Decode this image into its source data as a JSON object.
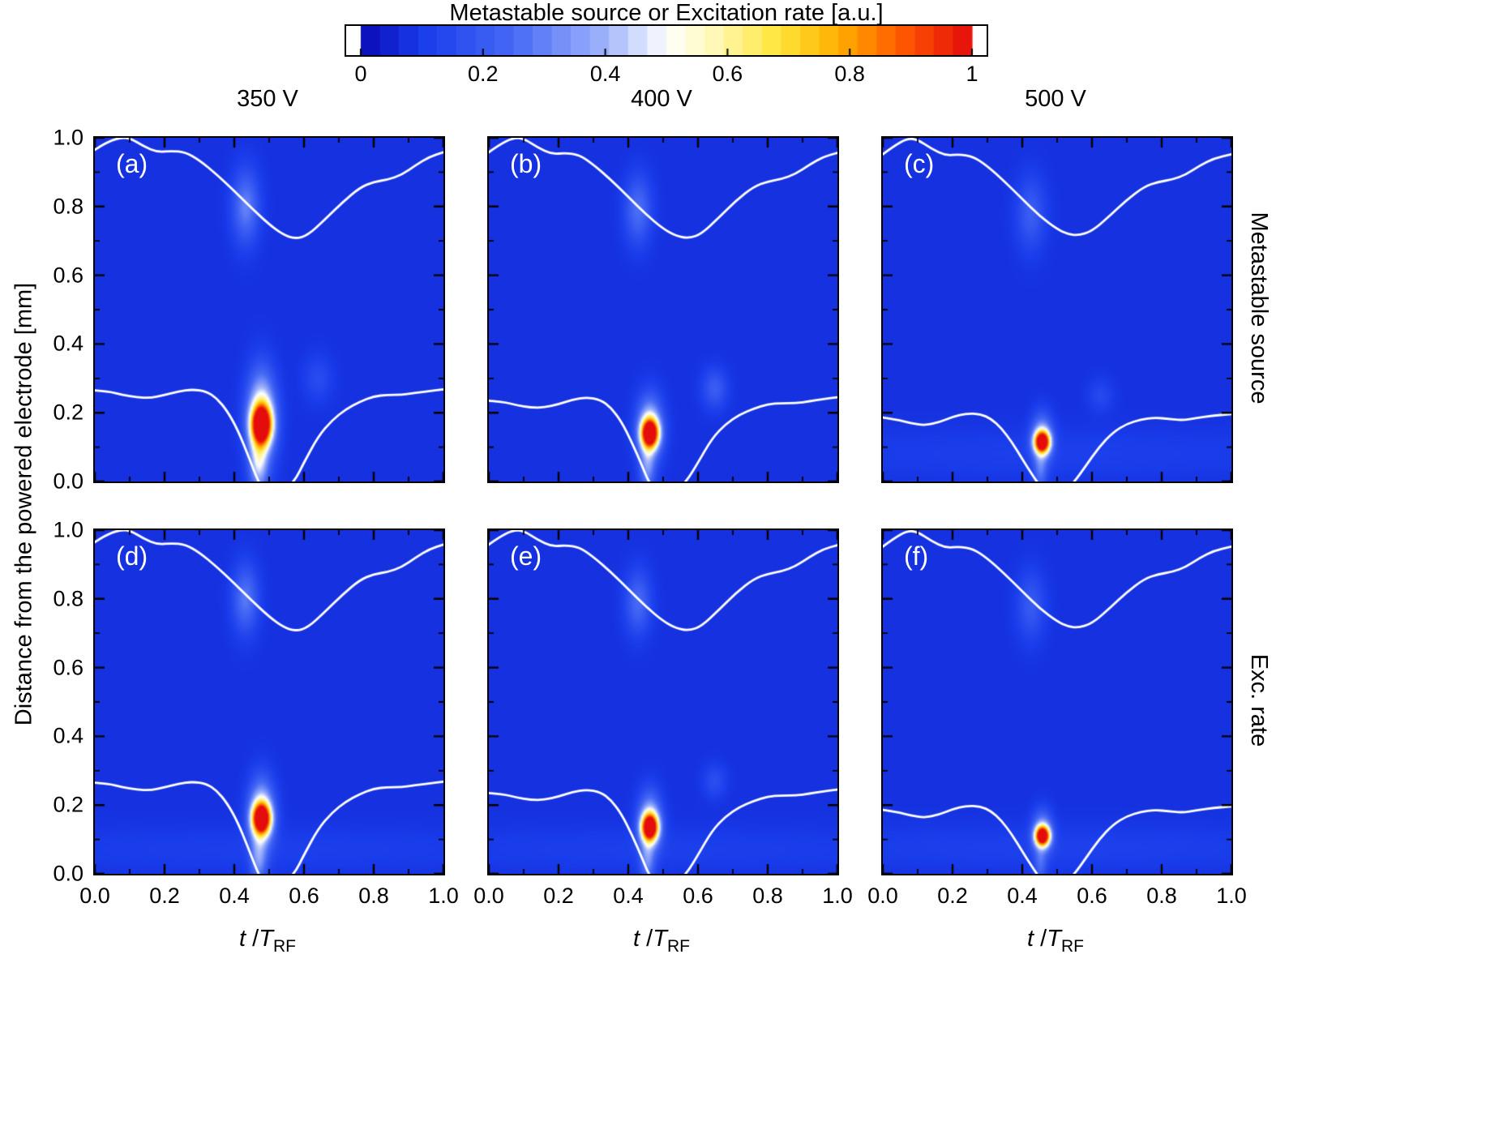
{
  "colorbar": {
    "title": "Metastable source or Excitation rate [a.u.]",
    "tick_labels": [
      "0",
      "0.2",
      "0.4",
      "0.6",
      "0.8",
      "1"
    ],
    "tick_values": [
      0,
      0.2,
      0.4,
      0.6,
      0.8,
      1
    ]
  },
  "columns": [
    {
      "label": "350 V"
    },
    {
      "label": "400 V"
    },
    {
      "label": "500 V"
    }
  ],
  "rows": [
    {
      "label": "Metastable source"
    },
    {
      "label": "Exc. rate"
    }
  ],
  "axes": {
    "ylabel": "Distance from the powered electrode [mm]",
    "xlabel_t": "t",
    "xlabel_slash": " /",
    "xlabel_T": "T",
    "xlabel_sub": "RF",
    "x_tick_labels": [
      "0.0",
      "0.2",
      "0.4",
      "0.6",
      "0.8",
      "1.0"
    ],
    "x_tick_values": [
      0,
      0.2,
      0.4,
      0.6,
      0.8,
      1
    ],
    "y_tick_labels": [
      "0.0",
      "0.2",
      "0.4",
      "0.6",
      "0.8",
      "1.0"
    ],
    "y_tick_values": [
      0,
      0.2,
      0.4,
      0.6,
      0.8,
      1
    ]
  },
  "chart_data": {
    "type": "heatmap",
    "x_range": [
      0,
      1
    ],
    "y_range": [
      0,
      1
    ],
    "x_axis": "t/T_RF (normalized time in RF period)",
    "y_axis": "Distance from the powered electrode [mm]",
    "value_label": "Metastable source or Excitation rate [a.u.]",
    "value_range": [
      0,
      1
    ],
    "base_value": 0.08,
    "colormap_stops": [
      [
        0.0,
        10,
        10,
        180
      ],
      [
        0.1,
        25,
        60,
        235
      ],
      [
        0.25,
        70,
        105,
        245
      ],
      [
        0.4,
        160,
        180,
        250
      ],
      [
        0.5,
        255,
        255,
        255
      ],
      [
        0.58,
        255,
        248,
        180
      ],
      [
        0.68,
        255,
        230,
        60
      ],
      [
        0.78,
        255,
        176,
        0
      ],
      [
        0.88,
        255,
        92,
        0
      ],
      [
        1.0,
        228,
        12,
        12
      ]
    ],
    "sheaths": {
      "350": {
        "top": [
          [
            0,
            0.965
          ],
          [
            0.03,
            0.985
          ],
          [
            0.07,
            1.0
          ],
          [
            0.1,
            1.0
          ],
          [
            0.14,
            0.975
          ],
          [
            0.18,
            0.958
          ],
          [
            0.22,
            0.962
          ],
          [
            0.26,
            0.958
          ],
          [
            0.3,
            0.935
          ],
          [
            0.35,
            0.893
          ],
          [
            0.4,
            0.845
          ],
          [
            0.45,
            0.795
          ],
          [
            0.5,
            0.748
          ],
          [
            0.54,
            0.718
          ],
          [
            0.575,
            0.706
          ],
          [
            0.61,
            0.716
          ],
          [
            0.66,
            0.762
          ],
          [
            0.71,
            0.812
          ],
          [
            0.76,
            0.855
          ],
          [
            0.8,
            0.872
          ],
          [
            0.84,
            0.878
          ],
          [
            0.88,
            0.892
          ],
          [
            0.92,
            0.92
          ],
          [
            0.96,
            0.945
          ],
          [
            1.0,
            0.958
          ]
        ],
        "bottom": [
          [
            0,
            0.265
          ],
          [
            0.04,
            0.262
          ],
          [
            0.08,
            0.252
          ],
          [
            0.12,
            0.245
          ],
          [
            0.16,
            0.243
          ],
          [
            0.2,
            0.252
          ],
          [
            0.24,
            0.262
          ],
          [
            0.28,
            0.268
          ],
          [
            0.32,
            0.262
          ],
          [
            0.35,
            0.242
          ],
          [
            0.38,
            0.205
          ],
          [
            0.41,
            0.15
          ],
          [
            0.44,
            0.075
          ],
          [
            0.465,
            0.01
          ],
          [
            0.48,
            -0.02
          ],
          [
            0.55,
            -0.02
          ],
          [
            0.575,
            0.005
          ],
          [
            0.6,
            0.055
          ],
          [
            0.64,
            0.13
          ],
          [
            0.68,
            0.178
          ],
          [
            0.72,
            0.21
          ],
          [
            0.76,
            0.232
          ],
          [
            0.8,
            0.248
          ],
          [
            0.84,
            0.252
          ],
          [
            0.88,
            0.252
          ],
          [
            0.92,
            0.258
          ],
          [
            0.96,
            0.263
          ],
          [
            1.0,
            0.268
          ]
        ]
      },
      "400": {
        "top": [
          [
            0,
            0.958
          ],
          [
            0.03,
            0.98
          ],
          [
            0.07,
            1.0
          ],
          [
            0.1,
            0.998
          ],
          [
            0.14,
            0.972
          ],
          [
            0.18,
            0.952
          ],
          [
            0.22,
            0.956
          ],
          [
            0.26,
            0.95
          ],
          [
            0.3,
            0.922
          ],
          [
            0.35,
            0.878
          ],
          [
            0.4,
            0.828
          ],
          [
            0.45,
            0.778
          ],
          [
            0.5,
            0.735
          ],
          [
            0.54,
            0.713
          ],
          [
            0.575,
            0.708
          ],
          [
            0.61,
            0.72
          ],
          [
            0.66,
            0.768
          ],
          [
            0.71,
            0.818
          ],
          [
            0.76,
            0.858
          ],
          [
            0.8,
            0.873
          ],
          [
            0.84,
            0.88
          ],
          [
            0.88,
            0.895
          ],
          [
            0.92,
            0.922
          ],
          [
            0.96,
            0.945
          ],
          [
            1.0,
            0.956
          ]
        ],
        "bottom": [
          [
            0,
            0.235
          ],
          [
            0.04,
            0.232
          ],
          [
            0.08,
            0.222
          ],
          [
            0.12,
            0.215
          ],
          [
            0.16,
            0.215
          ],
          [
            0.2,
            0.225
          ],
          [
            0.24,
            0.238
          ],
          [
            0.28,
            0.245
          ],
          [
            0.32,
            0.238
          ],
          [
            0.35,
            0.215
          ],
          [
            0.38,
            0.175
          ],
          [
            0.41,
            0.115
          ],
          [
            0.44,
            0.045
          ],
          [
            0.46,
            -0.005
          ],
          [
            0.48,
            -0.02
          ],
          [
            0.545,
            -0.02
          ],
          [
            0.57,
            0.005
          ],
          [
            0.6,
            0.055
          ],
          [
            0.64,
            0.125
          ],
          [
            0.68,
            0.168
          ],
          [
            0.72,
            0.195
          ],
          [
            0.76,
            0.212
          ],
          [
            0.8,
            0.225
          ],
          [
            0.84,
            0.228
          ],
          [
            0.88,
            0.228
          ],
          [
            0.92,
            0.233
          ],
          [
            0.96,
            0.24
          ],
          [
            1.0,
            0.245
          ]
        ]
      },
      "500": {
        "top": [
          [
            0,
            0.952
          ],
          [
            0.03,
            0.975
          ],
          [
            0.07,
            0.998
          ],
          [
            0.1,
            0.995
          ],
          [
            0.14,
            0.968
          ],
          [
            0.18,
            0.948
          ],
          [
            0.22,
            0.952
          ],
          [
            0.26,
            0.945
          ],
          [
            0.3,
            0.918
          ],
          [
            0.35,
            0.872
          ],
          [
            0.4,
            0.822
          ],
          [
            0.45,
            0.772
          ],
          [
            0.5,
            0.734
          ],
          [
            0.53,
            0.72
          ],
          [
            0.56,
            0.716
          ],
          [
            0.6,
            0.728
          ],
          [
            0.65,
            0.772
          ],
          [
            0.7,
            0.82
          ],
          [
            0.75,
            0.858
          ],
          [
            0.79,
            0.872
          ],
          [
            0.83,
            0.878
          ],
          [
            0.87,
            0.893
          ],
          [
            0.91,
            0.92
          ],
          [
            0.95,
            0.94
          ],
          [
            1.0,
            0.952
          ]
        ],
        "bottom": [
          [
            0,
            0.186
          ],
          [
            0.04,
            0.18
          ],
          [
            0.08,
            0.17
          ],
          [
            0.12,
            0.163
          ],
          [
            0.16,
            0.172
          ],
          [
            0.2,
            0.188
          ],
          [
            0.24,
            0.198
          ],
          [
            0.28,
            0.196
          ],
          [
            0.31,
            0.183
          ],
          [
            0.34,
            0.155
          ],
          [
            0.37,
            0.115
          ],
          [
            0.4,
            0.065
          ],
          [
            0.43,
            0.018
          ],
          [
            0.445,
            -0.005
          ],
          [
            0.46,
            -0.02
          ],
          [
            0.53,
            -0.02
          ],
          [
            0.55,
            0.0
          ],
          [
            0.58,
            0.042
          ],
          [
            0.62,
            0.1
          ],
          [
            0.66,
            0.143
          ],
          [
            0.7,
            0.168
          ],
          [
            0.74,
            0.18
          ],
          [
            0.78,
            0.186
          ],
          [
            0.82,
            0.182
          ],
          [
            0.86,
            0.178
          ],
          [
            0.9,
            0.185
          ],
          [
            0.95,
            0.192
          ],
          [
            1.0,
            0.196
          ]
        ]
      }
    },
    "panels": [
      {
        "label": "(a)",
        "voltage": "350 V",
        "quantity": "Metastable source",
        "sheath_key": "350",
        "hotspot": {
          "t": 0.478,
          "x": 0.165,
          "peak": 1.0
        },
        "gaussians": [
          [
            0.478,
            0.165,
            1.0,
            0.02,
            0.038
          ],
          [
            0.478,
            0.19,
            0.5,
            0.027,
            0.085
          ],
          [
            0.47,
            0.05,
            0.3,
            0.018,
            0.055
          ],
          [
            0.433,
            0.8,
            0.22,
            0.026,
            0.07
          ],
          [
            0.64,
            0.3,
            0.07,
            0.028,
            0.045
          ]
        ]
      },
      {
        "label": "(b)",
        "voltage": "400 V",
        "quantity": "Metastable source",
        "sheath_key": "400",
        "hotspot": {
          "t": 0.462,
          "x": 0.14,
          "peak": 1.0
        },
        "gaussians": [
          [
            0.462,
            0.14,
            1.0,
            0.017,
            0.028
          ],
          [
            0.462,
            0.155,
            0.42,
            0.024,
            0.06
          ],
          [
            0.455,
            0.04,
            0.22,
            0.015,
            0.05
          ],
          [
            0.428,
            0.79,
            0.18,
            0.026,
            0.065
          ],
          [
            0.648,
            0.27,
            0.13,
            0.024,
            0.038
          ]
        ]
      },
      {
        "label": "(c)",
        "voltage": "500 V",
        "quantity": "Metastable source",
        "sheath_key": "500",
        "hotspot": {
          "t": 0.457,
          "x": 0.115,
          "peak": 1.0
        },
        "gaussians": [
          [
            0.457,
            0.115,
            1.0,
            0.015,
            0.021
          ],
          [
            0.457,
            0.125,
            0.35,
            0.02,
            0.045
          ],
          [
            0.452,
            0.03,
            0.16,
            0.013,
            0.04
          ],
          [
            0.425,
            0.78,
            0.13,
            0.028,
            0.07
          ],
          [
            0.625,
            0.25,
            0.06,
            0.024,
            0.032
          ],
          [
            0.5,
            0.08,
            0.03,
            0.6,
            0.05
          ]
        ]
      },
      {
        "label": "(d)",
        "voltage": "350 V",
        "quantity": "Excitation rate",
        "sheath_key": "350",
        "hotspot": {
          "t": 0.478,
          "x": 0.16,
          "peak": 1.0
        },
        "gaussians": [
          [
            0.478,
            0.16,
            1.0,
            0.018,
            0.03
          ],
          [
            0.478,
            0.175,
            0.45,
            0.024,
            0.065
          ],
          [
            0.47,
            0.04,
            0.22,
            0.016,
            0.05
          ],
          [
            0.432,
            0.8,
            0.2,
            0.025,
            0.065
          ],
          [
            0.5,
            0.07,
            0.03,
            0.6,
            0.045
          ]
        ]
      },
      {
        "label": "(e)",
        "voltage": "400 V",
        "quantity": "Excitation rate",
        "sheath_key": "400",
        "hotspot": {
          "t": 0.462,
          "x": 0.135,
          "peak": 1.0
        },
        "gaussians": [
          [
            0.462,
            0.135,
            1.0,
            0.016,
            0.026
          ],
          [
            0.462,
            0.15,
            0.4,
            0.022,
            0.055
          ],
          [
            0.455,
            0.035,
            0.2,
            0.014,
            0.045
          ],
          [
            0.428,
            0.79,
            0.17,
            0.025,
            0.06
          ],
          [
            0.648,
            0.27,
            0.08,
            0.022,
            0.032
          ],
          [
            0.5,
            0.07,
            0.03,
            0.6,
            0.045
          ]
        ]
      },
      {
        "label": "(f)",
        "voltage": "500 V",
        "quantity": "Excitation rate",
        "sheath_key": "500",
        "hotspot": {
          "t": 0.458,
          "x": 0.11,
          "peak": 1.0
        },
        "gaussians": [
          [
            0.458,
            0.11,
            1.0,
            0.014,
            0.019
          ],
          [
            0.458,
            0.12,
            0.33,
            0.019,
            0.04
          ],
          [
            0.452,
            0.025,
            0.14,
            0.012,
            0.035
          ],
          [
            0.425,
            0.78,
            0.12,
            0.027,
            0.065
          ],
          [
            0.5,
            0.075,
            0.035,
            0.6,
            0.045
          ]
        ]
      }
    ]
  }
}
